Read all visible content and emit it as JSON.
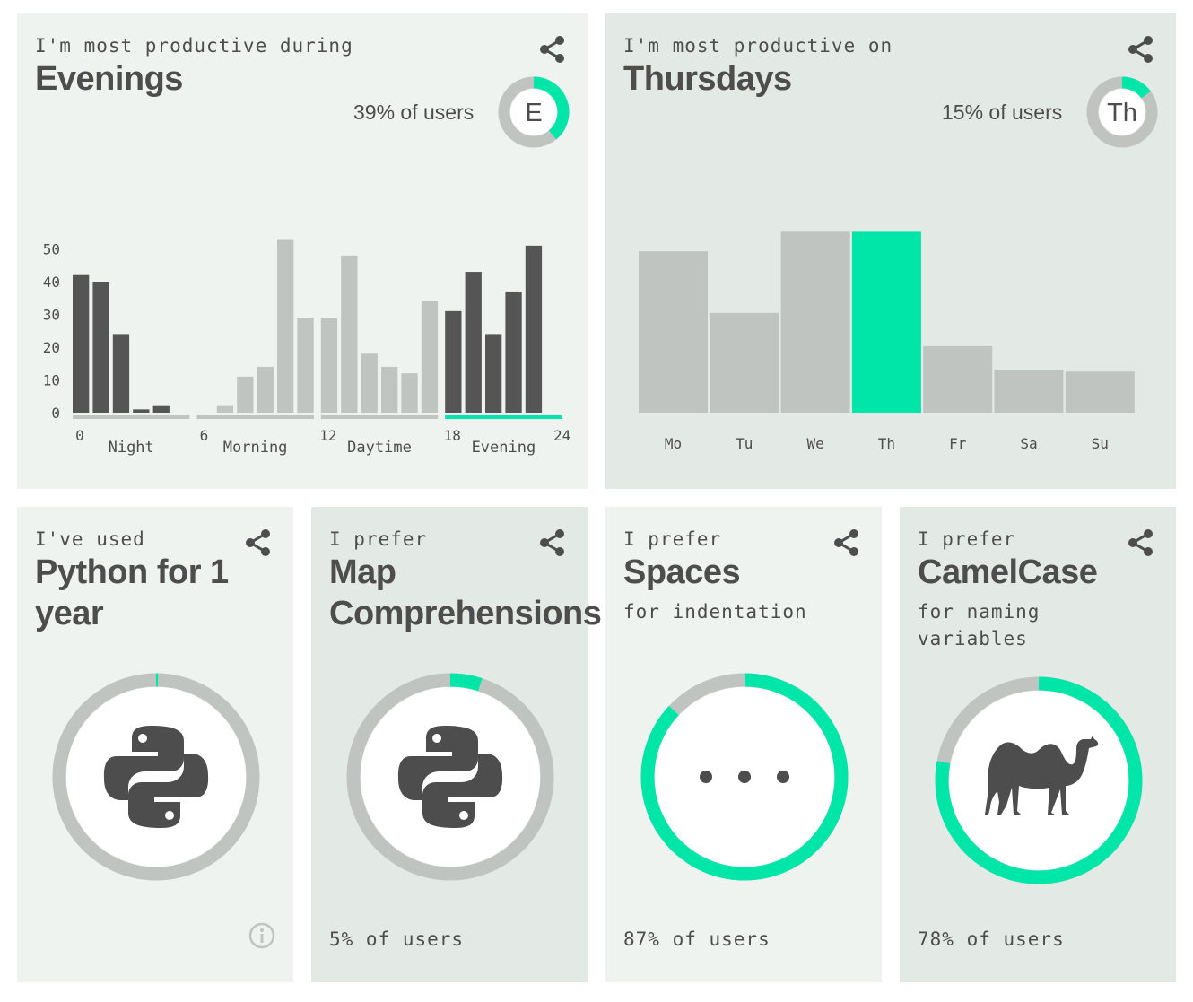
{
  "colors": {
    "accent": "#00e6a8",
    "grey": "#bfc4c0",
    "dark": "#555555",
    "card_light": "#eef3ef",
    "card_dark": "#e3e9e5"
  },
  "cards": {
    "hours": {
      "lead": "I'm most productive during",
      "title": "Evenings",
      "pct_label": "39% of users",
      "pct": 0.39,
      "badge": "E",
      "share_icon": "share-icon"
    },
    "days": {
      "lead": "I'm most productive on",
      "title": "Thursdays",
      "pct_label": "15% of users",
      "pct": 0.15,
      "badge": "Th",
      "share_icon": "share-icon"
    },
    "python": {
      "lead": "I've used",
      "title": "Python for 1 year",
      "pct": 0.003,
      "icon": "python-logo-icon",
      "info_icon": "info-icon",
      "share_icon": "share-icon"
    },
    "map": {
      "lead": "I prefer",
      "title": "Map Comprehensions",
      "pct": 0.05,
      "foot": "5% of users",
      "icon": "python-logo-icon",
      "share_icon": "share-icon"
    },
    "spaces": {
      "lead": "I prefer",
      "title": "Spaces",
      "sub": "for indentation",
      "pct": 0.87,
      "foot": "87% of users",
      "icon": "dots-icon",
      "share_icon": "share-icon"
    },
    "camel": {
      "lead": "I prefer",
      "title": "CamelCase",
      "sub": "for naming variables",
      "pct": 0.78,
      "foot": "78% of users",
      "icon": "camel-icon",
      "share_icon": "share-icon"
    }
  },
  "chart_data": [
    {
      "type": "bar",
      "y_ticks": [
        0,
        10,
        20,
        30,
        40,
        50
      ],
      "ylim": [
        0,
        55
      ],
      "x_ticks": [
        "0",
        "6",
        "12",
        "18",
        "24"
      ],
      "x": [
        0,
        1,
        2,
        3,
        4,
        5,
        6,
        7,
        8,
        9,
        10,
        11,
        12,
        13,
        14,
        15,
        16,
        17,
        18,
        19,
        20,
        21,
        22,
        23
      ],
      "values": [
        42,
        40,
        24,
        1,
        2,
        0,
        0,
        2,
        11,
        14,
        53,
        29,
        29,
        48,
        18,
        14,
        12,
        34,
        31,
        43,
        24,
        37,
        51,
        null
      ],
      "segments": [
        {
          "label": "Night",
          "start": 0,
          "end": 6,
          "highlight": true
        },
        {
          "label": "Morning",
          "start": 6,
          "end": 12,
          "highlight": false
        },
        {
          "label": "Daytime",
          "start": 12,
          "end": 18,
          "highlight": false
        },
        {
          "label": "Evening",
          "start": 18,
          "end": 24,
          "highlight": true
        }
      ],
      "active_segment": "Evening"
    },
    {
      "type": "bar",
      "categories": [
        "Mo",
        "Tu",
        "We",
        "Th",
        "Fr",
        "Sa",
        "Su"
      ],
      "values": [
        16.5,
        10.2,
        18.5,
        18.5,
        6.8,
        4.4,
        4.2
      ],
      "highlight": "Th"
    }
  ]
}
